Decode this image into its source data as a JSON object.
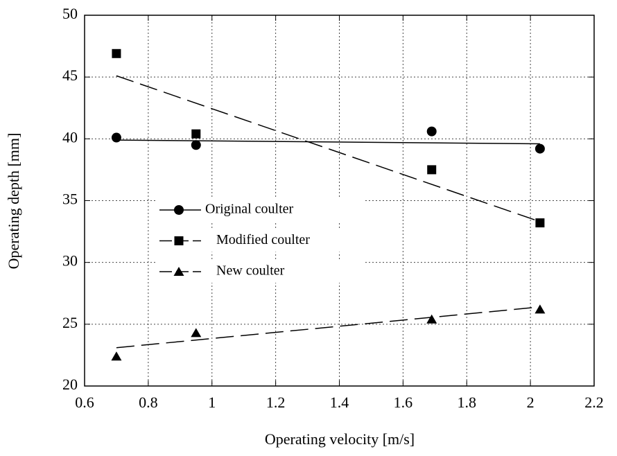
{
  "chart_data": {
    "type": "scatter",
    "x_label": "Operating velocity [m/s]",
    "y_label": "Operating depth [mm]",
    "xlim": [
      0.6,
      2.2
    ],
    "xticks": [
      0.6,
      0.8,
      1,
      1.2,
      1.4,
      1.6,
      1.8,
      2,
      2.2
    ],
    "ylim": [
      20,
      50
    ],
    "yticks": [
      20,
      25,
      30,
      35,
      40,
      45,
      50
    ],
    "grid": true,
    "series": [
      {
        "name": "Original coulter",
        "color": "#000000",
        "marker": "circle",
        "line": "solid",
        "x": [
          0.7,
          0.95,
          1.69,
          2.03
        ],
        "values": [
          40.1,
          39.5,
          40.6,
          39.2
        ],
        "trend_x": [
          0.7,
          2.03
        ],
        "trend": [
          39.9,
          39.6
        ]
      },
      {
        "name": "Modified coulter",
        "color": "#000000",
        "marker": "square",
        "line": "dashed",
        "x": [
          0.7,
          0.95,
          1.69,
          2.03
        ],
        "values": [
          46.9,
          40.4,
          37.5,
          33.2
        ],
        "trend_x": [
          0.7,
          2.03
        ],
        "trend": [
          45.1,
          33.3
        ]
      },
      {
        "name": "New coulter",
        "color": "#000000",
        "marker": "triangle",
        "line": "dashed",
        "x": [
          0.7,
          0.95,
          1.69,
          2.03
        ],
        "values": [
          22.4,
          24.3,
          25.4,
          26.2
        ],
        "trend_x": [
          0.7,
          2.03
        ],
        "trend": [
          23.1,
          26.4
        ]
      }
    ]
  }
}
